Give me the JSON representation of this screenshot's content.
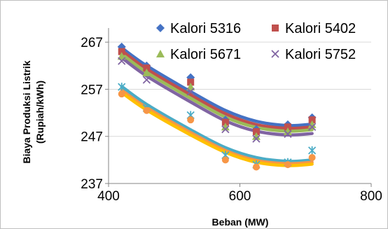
{
  "chart_data": {
    "type": "scatter",
    "xlabel": "Beban (MW)",
    "ylabel_line1": "Biaya Produksi Listrik",
    "ylabel_line2": "(Rupiah/kWh)",
    "xlim": [
      400,
      800
    ],
    "ylim": [
      237,
      270
    ],
    "x_ticks": [
      400,
      600,
      800
    ],
    "y_ticks": [
      237,
      247,
      257,
      267
    ],
    "x_tick_labels": [
      "400",
      "600",
      "800"
    ],
    "y_tick_labels": [
      "237",
      "247",
      "257",
      "267"
    ],
    "grid": "horizontal",
    "legend_position": "top-right",
    "series": [
      {
        "name": "Kalori 5316",
        "color": "#4472c4",
        "marker": "diamond",
        "x": [
          420,
          458,
          525,
          578,
          625,
          673,
          710
        ],
        "y": [
          266,
          262,
          259.5,
          250.5,
          248.5,
          249.5,
          251
        ],
        "trend_y": [
          265.8,
          262,
          256.5,
          252.5,
          250.2,
          249.3,
          249.6
        ]
      },
      {
        "name": "Kalori 5402",
        "color": "#c0504d",
        "marker": "square",
        "x": [
          420,
          458,
          525,
          578,
          625,
          673,
          710
        ],
        "y": [
          265,
          261.5,
          258.5,
          250,
          248,
          249,
          250.5
        ],
        "trend_y": [
          265.2,
          261.3,
          255.8,
          251.8,
          249.5,
          248.7,
          249.0
        ]
      },
      {
        "name": "Kalori 5671",
        "color": "#9bbb59",
        "marker": "triangle",
        "x": [
          420,
          458,
          525,
          578,
          625,
          673,
          710
        ],
        "y": [
          264,
          260.5,
          257.5,
          249,
          247,
          248,
          249.5
        ],
        "trend_y": [
          264.5,
          260.6,
          255.1,
          251.1,
          248.9,
          248.1,
          248.4
        ]
      },
      {
        "name": "Kalori 5752",
        "color": "#8064a2",
        "marker": "x",
        "x": [
          420,
          458,
          525,
          578,
          625,
          673,
          710
        ],
        "y": [
          263,
          259,
          256.5,
          248.5,
          246.5,
          247.5,
          249
        ],
        "trend_y": [
          263.7,
          259.8,
          254.3,
          250.3,
          248.1,
          247.3,
          247.6
        ]
      },
      {
        "name": "",
        "color": "#4bacc6",
        "marker": "star",
        "x": [
          420,
          458,
          525,
          578,
          625,
          673,
          710
        ],
        "y": [
          257.5,
          253,
          251.5,
          243,
          241,
          241.5,
          244
        ],
        "trend_y": [
          257.6,
          253.8,
          248.4,
          244.6,
          242.5,
          241.7,
          242.0
        ]
      },
      {
        "name": "",
        "color": "#f79646",
        "marker": "circle",
        "x": [
          420,
          458,
          525,
          578,
          625,
          673,
          710
        ],
        "y": [
          256,
          252.5,
          250.5,
          242,
          240.5,
          241,
          242.5
        ],
        "trend_y": [
          256.8,
          253.1,
          247.8,
          244.0,
          241.9,
          241.2,
          241.5
        ]
      }
    ],
    "extra_trends": [
      {
        "color": "#ffc000",
        "trend_y": [
          256.3,
          252.6,
          247.3,
          243.6,
          241.5,
          240.8,
          241.1
        ]
      }
    ]
  }
}
